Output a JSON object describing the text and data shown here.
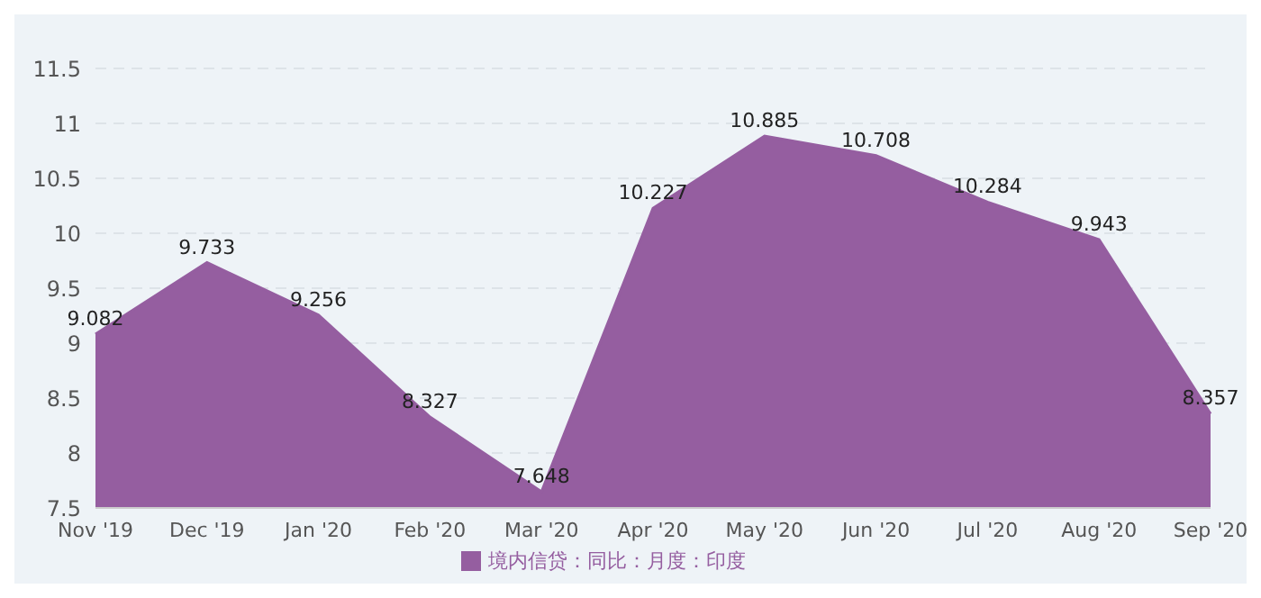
{
  "chart_data": {
    "type": "area",
    "categories": [
      "Nov '19",
      "Dec '19",
      "Jan '20",
      "Feb '20",
      "Mar '20",
      "Apr '20",
      "May '20",
      "Jun '20",
      "Jul '20",
      "Aug '20",
      "Sep '20"
    ],
    "series": [
      {
        "name": "境内信贷：同比：月度：印度",
        "color": "#955ea0",
        "values": [
          9.082,
          9.733,
          9.256,
          8.327,
          7.648,
          10.227,
          10.885,
          10.708,
          10.284,
          9.943,
          8.357
        ]
      }
    ],
    "ylim": [
      7.5,
      11.5
    ],
    "yticks": [
      7.5,
      8,
      8.5,
      9,
      9.5,
      10,
      10.5,
      11,
      11.5
    ],
    "grid": "y",
    "legend": "bottom",
    "data_labels": true
  }
}
